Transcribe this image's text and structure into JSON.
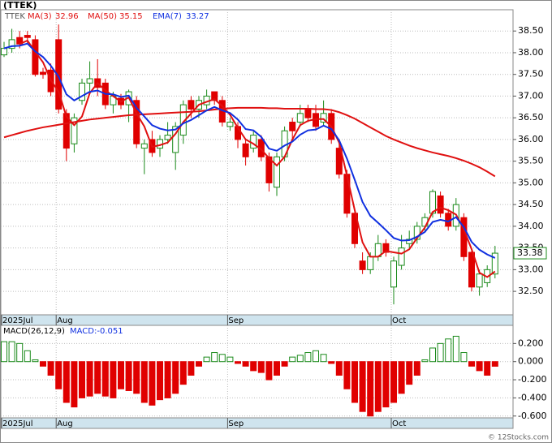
{
  "chart_data": [
    {
      "type": "candlestick",
      "title": "(TTEK)",
      "symbol": "TTEK",
      "categories": [
        "2025Jul",
        null,
        null,
        null,
        null,
        null,
        null,
        "Aug",
        null,
        null,
        null,
        null,
        null,
        null,
        null,
        null,
        null,
        null,
        null,
        null,
        null,
        null,
        null,
        null,
        null,
        null,
        null,
        null,
        null,
        "Sep",
        null,
        null,
        null,
        null,
        null,
        null,
        null,
        null,
        null,
        null,
        null,
        null,
        null,
        null,
        null,
        null,
        null,
        null,
        null,
        null,
        "Oct",
        null,
        null,
        null,
        null,
        null,
        null,
        null,
        null,
        null,
        null,
        null,
        null,
        null
      ],
      "open": [
        37.95,
        38.1,
        38.35,
        38.4,
        38.3,
        37.55,
        37.6,
        38.3,
        36.6,
        35.9,
        36.9,
        37.3,
        37.4,
        37.3,
        36.8,
        36.95,
        36.8,
        36.9,
        35.8,
        36.0,
        35.8,
        36.0,
        35.7,
        36.1,
        36.9,
        36.7,
        36.8,
        37.1,
        36.9,
        36.3,
        36.3,
        35.9,
        35.8,
        36.0,
        35.6,
        34.9,
        35.6,
        36.4,
        36.4,
        36.7,
        36.6,
        36.4,
        36.6,
        35.8,
        35.2,
        34.3,
        33.2,
        33.0,
        33.3,
        33.6,
        32.6,
        33.1,
        33.6,
        33.7,
        34.0,
        34.3,
        34.7,
        34.3,
        34.0,
        34.2,
        33.4,
        32.6,
        32.7,
        32.9
      ],
      "high": [
        38.25,
        38.55,
        38.5,
        38.5,
        38.4,
        37.65,
        37.75,
        38.65,
        36.7,
        36.6,
        37.4,
        37.8,
        37.85,
        37.4,
        37.1,
        37.05,
        37.15,
        37.0,
        36.0,
        36.2,
        36.1,
        36.4,
        36.4,
        36.9,
        37.0,
        37.0,
        37.15,
        37.1,
        37.0,
        36.5,
        36.4,
        36.0,
        36.2,
        36.1,
        35.7,
        35.7,
        36.3,
        36.5,
        36.8,
        36.8,
        36.8,
        36.9,
        36.7,
        35.9,
        35.3,
        34.4,
        33.4,
        33.4,
        33.8,
        33.7,
        33.3,
        33.8,
        33.9,
        34.1,
        34.3,
        34.85,
        34.8,
        34.4,
        34.65,
        34.3,
        33.5,
        33.0,
        33.1,
        33.55
      ],
      "low": [
        37.9,
        38.0,
        38.1,
        38.2,
        37.45,
        37.4,
        37.0,
        36.6,
        35.5,
        35.7,
        36.8,
        37.1,
        37.0,
        36.7,
        36.6,
        36.7,
        36.4,
        35.8,
        35.2,
        35.6,
        35.6,
        35.9,
        35.3,
        35.9,
        36.5,
        36.5,
        36.7,
        36.8,
        36.3,
        36.2,
        35.8,
        35.4,
        35.7,
        35.5,
        34.8,
        34.7,
        35.5,
        36.0,
        36.3,
        36.4,
        36.2,
        36.3,
        35.9,
        35.1,
        34.2,
        33.5,
        32.9,
        32.9,
        33.2,
        33.3,
        32.2,
        33.0,
        33.5,
        33.6,
        33.9,
        34.2,
        34.2,
        33.9,
        33.9,
        33.2,
        32.5,
        32.4,
        32.6,
        32.8
      ],
      "close": [
        38.1,
        38.3,
        38.2,
        38.35,
        37.5,
        37.5,
        37.1,
        36.7,
        35.8,
        36.5,
        37.3,
        37.4,
        37.2,
        36.8,
        37.0,
        36.8,
        37.1,
        35.9,
        35.9,
        35.7,
        36.0,
        36.1,
        36.3,
        36.8,
        36.7,
        36.9,
        37.0,
        36.9,
        36.4,
        36.4,
        36.0,
        35.6,
        36.1,
        35.6,
        35.0,
        35.6,
        36.2,
        36.2,
        36.6,
        36.5,
        36.3,
        36.6,
        36.0,
        35.2,
        34.3,
        33.6,
        33.0,
        33.3,
        33.6,
        33.4,
        33.2,
        33.5,
        33.7,
        34.0,
        34.2,
        34.8,
        34.3,
        34.0,
        34.5,
        33.3,
        32.6,
        32.9,
        33.0,
        33.38
      ],
      "up_color": "#1a8a1a",
      "down_color": "#e00000",
      "series": [
        {
          "name": "MA(3)",
          "color": "#e01010",
          "values": [
            null,
            null,
            38.2,
            38.28,
            38.02,
            37.78,
            37.37,
            37.1,
            36.53,
            36.33,
            36.53,
            37.07,
            37.3,
            37.13,
            37.0,
            36.87,
            36.97,
            36.6,
            36.3,
            35.83,
            35.87,
            35.93,
            36.13,
            36.4,
            36.6,
            36.8,
            36.87,
            36.93,
            36.77,
            36.57,
            36.27,
            36.0,
            35.9,
            35.77,
            35.57,
            35.4,
            35.6,
            36.0,
            36.33,
            36.43,
            36.47,
            36.47,
            36.3,
            35.93,
            35.17,
            34.37,
            33.63,
            33.3,
            33.3,
            33.43,
            33.4,
            33.37,
            33.47,
            33.73,
            33.97,
            34.33,
            34.43,
            34.37,
            34.27,
            33.93,
            33.47,
            32.93,
            32.83,
            32.96
          ]
        },
        {
          "name": "MA(50)",
          "color": "#e01010",
          "values": [
            36.05,
            36.1,
            36.15,
            36.2,
            36.24,
            36.28,
            36.31,
            36.34,
            36.37,
            36.4,
            36.43,
            36.46,
            36.48,
            36.5,
            36.52,
            36.54,
            36.56,
            36.57,
            36.58,
            36.59,
            36.6,
            36.61,
            36.62,
            36.63,
            36.64,
            36.65,
            36.67,
            36.69,
            36.71,
            36.72,
            36.73,
            36.73,
            36.73,
            36.73,
            36.72,
            36.72,
            36.71,
            36.71,
            36.71,
            36.71,
            36.7,
            36.7,
            36.68,
            36.63,
            36.56,
            36.48,
            36.38,
            36.28,
            36.18,
            36.08,
            36.0,
            35.93,
            35.86,
            35.8,
            35.75,
            35.7,
            35.66,
            35.62,
            35.57,
            35.51,
            35.44,
            35.36,
            35.26,
            35.15
          ]
        },
        {
          "name": "EMA(7)",
          "color": "#1030e0",
          "values": [
            38.1,
            38.15,
            38.16,
            38.21,
            38.03,
            37.9,
            37.7,
            37.45,
            37.04,
            36.9,
            37.0,
            37.1,
            37.13,
            37.05,
            37.04,
            36.98,
            37.01,
            36.73,
            36.53,
            36.33,
            36.25,
            36.21,
            36.23,
            36.37,
            36.45,
            36.56,
            36.67,
            36.75,
            36.67,
            36.61,
            36.46,
            36.24,
            36.21,
            36.06,
            35.79,
            35.74,
            35.86,
            35.95,
            36.11,
            36.21,
            36.23,
            36.32,
            36.24,
            35.98,
            35.56,
            35.07,
            34.56,
            34.24,
            34.08,
            33.91,
            33.73,
            33.67,
            33.68,
            33.76,
            33.87,
            34.1,
            34.15,
            34.11,
            34.21,
            33.98,
            33.64,
            33.46,
            33.35,
            33.27
          ]
        }
      ],
      "ylim": [
        31.96,
        38.99
      ],
      "yticks": [
        {
          "value": 32.5,
          "label": "32.50"
        },
        {
          "value": 33,
          "label": "33.00"
        },
        {
          "value": 33.5,
          "label": "33.50"
        },
        {
          "value": 34,
          "label": "34.00"
        },
        {
          "value": 34.5,
          "label": "34.50"
        },
        {
          "value": 35,
          "label": "35.00"
        },
        {
          "value": 35.5,
          "label": "35.50"
        },
        {
          "value": 36,
          "label": "36.00"
        },
        {
          "value": 36.5,
          "label": "36.50"
        },
        {
          "value": 37,
          "label": "37.00"
        },
        {
          "value": 37.5,
          "label": "37.50"
        },
        {
          "value": 38,
          "label": "38.00"
        },
        {
          "value": 38.5,
          "label": "38.50"
        }
      ],
      "grid": true
    },
    {
      "type": "bar",
      "title": "MACD(26,12,9)",
      "current_label": "MACD:-0.051",
      "categories": [
        "2025Jul",
        null,
        null,
        null,
        null,
        null,
        null,
        "Aug",
        null,
        null,
        null,
        null,
        null,
        null,
        null,
        null,
        null,
        null,
        null,
        null,
        null,
        null,
        null,
        null,
        null,
        null,
        null,
        null,
        null,
        "Sep",
        null,
        null,
        null,
        null,
        null,
        null,
        null,
        null,
        null,
        null,
        null,
        null,
        null,
        null,
        null,
        null,
        null,
        null,
        null,
        null,
        "Oct",
        null,
        null,
        null,
        null,
        null,
        null,
        null,
        null,
        null,
        null,
        null,
        null,
        null
      ],
      "values": [
        0.22,
        0.22,
        0.2,
        0.12,
        0.02,
        -0.05,
        -0.15,
        -0.3,
        -0.45,
        -0.5,
        -0.4,
        -0.38,
        -0.35,
        -0.38,
        -0.4,
        -0.3,
        -0.32,
        -0.35,
        -0.45,
        -0.48,
        -0.42,
        -0.4,
        -0.35,
        -0.25,
        -0.15,
        -0.05,
        0.05,
        0.1,
        0.08,
        0.05,
        -0.02,
        -0.05,
        -0.1,
        -0.12,
        -0.2,
        -0.15,
        -0.05,
        0.05,
        0.07,
        0.1,
        0.12,
        0.08,
        -0.02,
        -0.15,
        -0.3,
        -0.45,
        -0.55,
        -0.6,
        -0.55,
        -0.5,
        -0.45,
        -0.35,
        -0.25,
        -0.15,
        0.02,
        0.15,
        0.2,
        0.25,
        0.28,
        0.1,
        -0.05,
        -0.1,
        -0.15,
        -0.051
      ],
      "up_color": "#1a8a1a",
      "down_color": "#e00000",
      "ylim": [
        -0.62,
        0.4
      ],
      "yticks": [
        {
          "value": -0.6,
          "label": "-0.600"
        },
        {
          "value": -0.4,
          "label": "-0.400"
        },
        {
          "value": -0.2,
          "label": "-0.200"
        },
        {
          "value": 0,
          "label": "0.000"
        },
        {
          "value": 0.2,
          "label": "0.200"
        }
      ],
      "grid": true
    }
  ],
  "footer": "© 12Stocks.com"
}
